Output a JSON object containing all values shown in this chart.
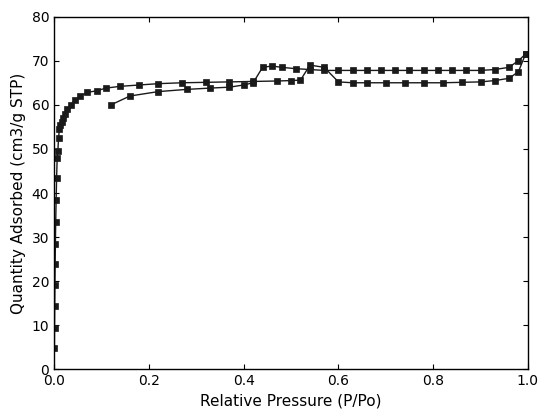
{
  "adsorption_x": [
    0.0005,
    0.0008,
    0.0012,
    0.0016,
    0.0021,
    0.0026,
    0.0033,
    0.0042,
    0.0052,
    0.0064,
    0.0078,
    0.0093,
    0.011,
    0.013,
    0.016,
    0.019,
    0.023,
    0.028,
    0.035,
    0.043,
    0.055,
    0.07,
    0.09,
    0.11,
    0.14,
    0.18,
    0.22,
    0.27,
    0.32,
    0.37,
    0.42,
    0.47,
    0.5,
    0.52,
    0.54,
    0.57,
    0.6,
    0.63,
    0.66,
    0.7,
    0.74,
    0.78,
    0.82,
    0.86,
    0.9,
    0.93,
    0.96,
    0.98,
    0.995
  ],
  "adsorption_y": [
    4.8,
    9.5,
    14.5,
    19.2,
    24.0,
    28.5,
    33.5,
    38.5,
    43.5,
    48.0,
    49.5,
    52.5,
    54.5,
    55.5,
    56.2,
    57.0,
    58.0,
    59.0,
    60.0,
    61.0,
    62.0,
    62.8,
    63.2,
    63.8,
    64.2,
    64.5,
    64.8,
    65.0,
    65.1,
    65.2,
    65.3,
    65.4,
    65.5,
    65.6,
    69.0,
    68.5,
    65.2,
    65.0,
    65.0,
    65.0,
    65.0,
    65.0,
    65.0,
    65.1,
    65.2,
    65.5,
    66.0,
    67.5,
    71.5
  ],
  "desorption_x": [
    0.995,
    0.98,
    0.96,
    0.93,
    0.9,
    0.87,
    0.84,
    0.81,
    0.78,
    0.75,
    0.72,
    0.69,
    0.66,
    0.63,
    0.6,
    0.57,
    0.54,
    0.51,
    0.48,
    0.46,
    0.44,
    0.42,
    0.4,
    0.37,
    0.33,
    0.28,
    0.22,
    0.16,
    0.12
  ],
  "desorption_y": [
    71.5,
    70.0,
    68.5,
    68.0,
    67.8,
    67.8,
    67.8,
    67.8,
    67.8,
    67.8,
    67.8,
    67.8,
    67.8,
    67.8,
    67.8,
    67.8,
    68.0,
    68.2,
    68.5,
    68.8,
    68.5,
    65.0,
    64.5,
    64.0,
    63.8,
    63.5,
    63.0,
    62.0,
    60.0
  ],
  "xlabel": "Relative Pressure (P/Po)",
  "ylabel": "Quantity Adsorbed (cm3/g STP)",
  "xlim": [
    0.0,
    1.0
  ],
  "ylim": [
    0,
    80
  ],
  "yticks": [
    0,
    10,
    20,
    30,
    40,
    50,
    60,
    70,
    80
  ],
  "xticks": [
    0.0,
    0.2,
    0.4,
    0.6,
    0.8,
    1.0
  ],
  "line_color": "#1a1a1a",
  "marker": "s",
  "markersize": 4,
  "linewidth": 1.0,
  "background_color": "#ffffff",
  "xlabel_fontsize": 11,
  "ylabel_fontsize": 11,
  "tick_labelsize": 10
}
